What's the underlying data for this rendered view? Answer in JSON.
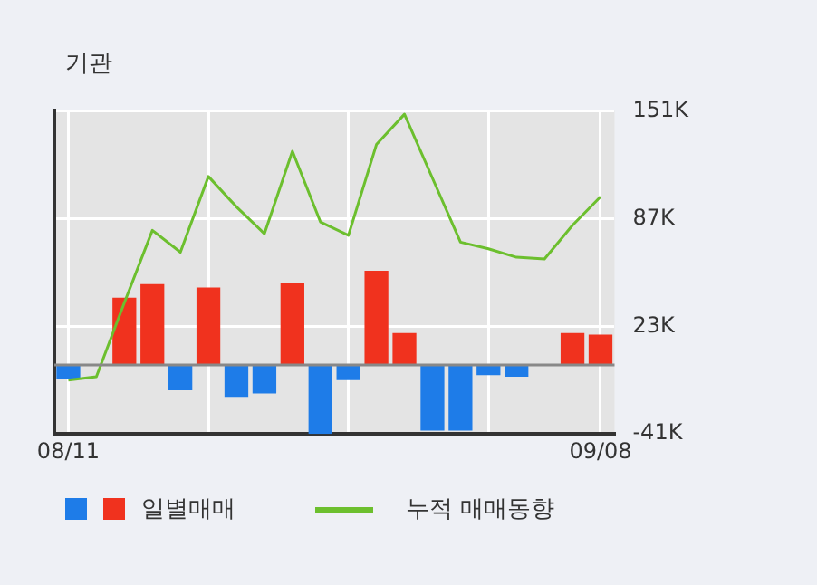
{
  "chart_data": {
    "type": "bar",
    "title": "기관",
    "categories": [
      "08/11",
      null,
      null,
      null,
      null,
      null,
      null,
      null,
      null,
      null,
      null,
      null,
      null,
      null,
      null,
      null,
      null,
      null,
      null,
      "09/08"
    ],
    "series": [
      {
        "name": "일별매매",
        "colors": [
          "#1e7ce8",
          "#1e7ce8",
          "#f0321e",
          "#f0321e",
          "#1e7ce8",
          "#f0321e",
          "#1e7ce8",
          "#1e7ce8",
          "#f0321e",
          "#1e7ce8",
          "#1e7ce8",
          "#f0321e",
          "#f0321e",
          "#1e7ce8",
          "#1e7ce8",
          "#1e7ce8",
          "#1e7ce8",
          "#1e7ce8",
          "#f0321e",
          "#f0321e"
        ],
        "values": [
          -8,
          0,
          40,
          48,
          -15,
          46,
          -19,
          -17,
          49,
          -41,
          -9,
          56,
          19,
          -39,
          -39,
          -6,
          -7,
          0,
          19,
          18
        ]
      },
      {
        "name": "누적 매매동향",
        "type": "line",
        "color": "#6cbf2e",
        "values": [
          -9,
          -7,
          37,
          80,
          67,
          112,
          94,
          78,
          127,
          85,
          77,
          131,
          149,
          111,
          73,
          69,
          64,
          63,
          83,
          100
        ]
      }
    ],
    "ylim": [
      -41,
      151
    ],
    "yticks": [
      {
        "value": -41,
        "label": "-41K"
      },
      {
        "value": 23,
        "label": "23K"
      },
      {
        "value": 87,
        "label": "87K"
      },
      {
        "value": 151,
        "label": "151K"
      }
    ],
    "grid": true,
    "legend": "bottom",
    "marker": "none"
  }
}
